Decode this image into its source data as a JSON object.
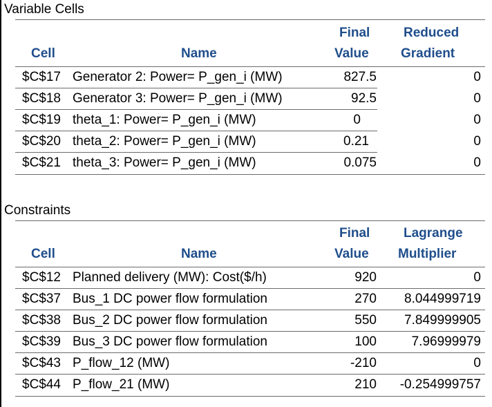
{
  "variable_cells": {
    "title": "Variable Cells",
    "headers": {
      "cell": "Cell",
      "name": "Name",
      "value_line1": "Final",
      "value_line2": "Value",
      "extra_line1": "Reduced",
      "extra_line2": "Gradient"
    },
    "rows": [
      {
        "cell": "$C$17",
        "name": "Generator 2: Power= P_gen_i (MW)",
        "value": "827.5",
        "extra": "0"
      },
      {
        "cell": "$C$18",
        "name": "Generator 3: Power= P_gen_i (MW)",
        "value": "92.5",
        "extra": "0"
      },
      {
        "cell": "$C$19",
        "name": "theta_1: Power= P_gen_i (MW)",
        "value": "0",
        "extra": "0"
      },
      {
        "cell": "$C$20",
        "name": "theta_2: Power= P_gen_i (MW)",
        "value": "0.21",
        "extra": "0"
      },
      {
        "cell": "$C$21",
        "name": "theta_3: Power= P_gen_i (MW)",
        "value": "0.075",
        "extra": "0"
      }
    ]
  },
  "constraints": {
    "title": "Constraints",
    "headers": {
      "cell": "Cell",
      "name": "Name",
      "value_line1": "Final",
      "value_line2": "Value",
      "extra_line1": "Lagrange",
      "extra_line2": "Multiplier"
    },
    "rows": [
      {
        "cell": "$C$12",
        "name": "Planned delivery (MW): Cost($/h)",
        "value": "920",
        "extra": "0"
      },
      {
        "cell": "$C$37",
        "name": "Bus_1 DC power flow formulation",
        "value": "270",
        "extra": "8.044999719"
      },
      {
        "cell": "$C$38",
        "name": "Bus_2 DC power flow formulation",
        "value": "550",
        "extra": "7.849999905"
      },
      {
        "cell": "$C$39",
        "name": "Bus_3 DC power flow formulation",
        "value": "100",
        "extra": "7.96999979"
      },
      {
        "cell": "$C$43",
        "name": "P_flow_12 (MW)",
        "value": "-210",
        "extra": "0"
      },
      {
        "cell": "$C$44",
        "name": "P_flow_21 (MW)",
        "value": "210",
        "extra": "-0.254999757"
      }
    ]
  }
}
